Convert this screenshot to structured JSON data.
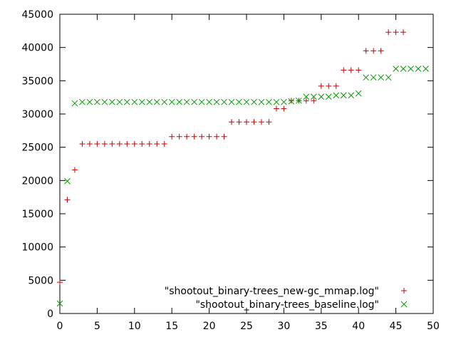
{
  "chart_data": {
    "type": "scatter",
    "title": "",
    "xlabel": "",
    "ylabel": "",
    "xlim": [
      0,
      50
    ],
    "ylim": [
      0,
      45000
    ],
    "xticks": [
      0,
      5,
      10,
      15,
      20,
      25,
      30,
      35,
      40,
      45,
      50
    ],
    "yticks": [
      0,
      5000,
      10000,
      15000,
      20000,
      25000,
      30000,
      35000,
      40000,
      45000
    ],
    "grid": false,
    "legend_position": "bottom-right",
    "series": [
      {
        "name": "\"shootout_binary-trees_new-gc_mmap.log\"",
        "marker": "plus",
        "color": "#cc0000",
        "x": [
          0,
          1,
          2,
          3,
          4,
          5,
          6,
          7,
          8,
          9,
          10,
          11,
          12,
          13,
          14,
          15,
          16,
          17,
          18,
          19,
          20,
          21,
          22,
          23,
          24,
          25,
          26,
          27,
          28,
          29,
          30,
          31,
          32,
          33,
          34,
          35,
          36,
          37,
          38,
          39,
          40,
          41,
          42,
          43,
          44,
          45,
          46
        ],
        "y": [
          4700,
          17100,
          21600,
          25500,
          25500,
          25500,
          25500,
          25500,
          25500,
          25500,
          25500,
          25500,
          25500,
          25500,
          25500,
          26600,
          26600,
          26600,
          26600,
          26600,
          26600,
          26600,
          26600,
          28800,
          28800,
          28800,
          28800,
          28800,
          28800,
          30800,
          30800,
          32000,
          32000,
          32000,
          32000,
          34200,
          34200,
          34200,
          36600,
          36600,
          36600,
          39500,
          39500,
          39500,
          42300,
          42300,
          42300
        ]
      },
      {
        "name": "\"shootout_binary-trees_baseline.log\"",
        "marker": "cross",
        "color": "#009900",
        "x": [
          0,
          1,
          2,
          3,
          4,
          5,
          6,
          7,
          8,
          9,
          10,
          11,
          12,
          13,
          14,
          15,
          16,
          17,
          18,
          19,
          20,
          21,
          22,
          23,
          24,
          25,
          26,
          27,
          28,
          29,
          30,
          31,
          32,
          33,
          34,
          35,
          36,
          37,
          38,
          39,
          40,
          41,
          42,
          43,
          44,
          45,
          46,
          47,
          48,
          49
        ],
        "y": [
          1500,
          19900,
          31600,
          31800,
          31800,
          31800,
          31800,
          31800,
          31800,
          31800,
          31800,
          31800,
          31800,
          31800,
          31800,
          31800,
          31800,
          31800,
          31800,
          31800,
          31800,
          31800,
          31800,
          31800,
          31800,
          31800,
          31800,
          31800,
          31800,
          31800,
          31800,
          31900,
          32000,
          32600,
          32600,
          32600,
          32600,
          32800,
          32800,
          32800,
          33100,
          35500,
          35500,
          35500,
          35500,
          36800,
          36800,
          36800,
          36800,
          36800
        ]
      }
    ]
  }
}
